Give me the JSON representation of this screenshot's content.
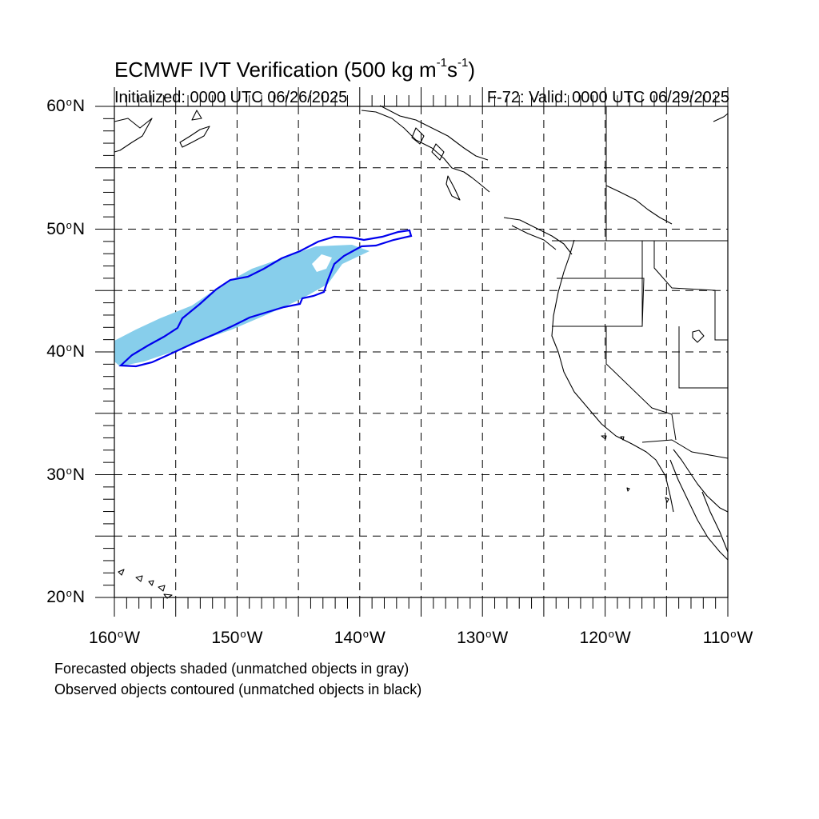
{
  "title": {
    "prefix": "ECMWF IVT Verification (500 kg m",
    "exp1": "-1",
    "mid": "s",
    "exp2": "-1",
    "suffix": ")"
  },
  "init_label": "Initialized: 0000 UTC 06/26/2025",
  "valid_label": "F-72: Valid: 0000 UTC 06/29/2025",
  "lat_labels": [
    {
      "num": "60",
      "hemi": "N",
      "value": 60
    },
    {
      "num": "50",
      "hemi": "N",
      "value": 50
    },
    {
      "num": "40",
      "hemi": "N",
      "value": 40
    },
    {
      "num": "30",
      "hemi": "N",
      "value": 30
    },
    {
      "num": "20",
      "hemi": "N",
      "value": 20
    }
  ],
  "lon_labels": [
    {
      "num": "160",
      "hemi": "W",
      "value": -160
    },
    {
      "num": "150",
      "hemi": "W",
      "value": -150
    },
    {
      "num": "140",
      "hemi": "W",
      "value": -140
    },
    {
      "num": "130",
      "hemi": "W",
      "value": -130
    },
    {
      "num": "120",
      "hemi": "W",
      "value": -120
    },
    {
      "num": "110",
      "hemi": "W",
      "value": -110
    }
  ],
  "footnote1": "Forecasted objects shaded (unmatched objects in gray)",
  "footnote2": "Observed objects contoured (unmatched objects in black)",
  "colors": {
    "forecast_fill": "#87ceeb",
    "observed_contour": "#0000ee",
    "coast": "#000000",
    "grid": "#000000"
  }
}
